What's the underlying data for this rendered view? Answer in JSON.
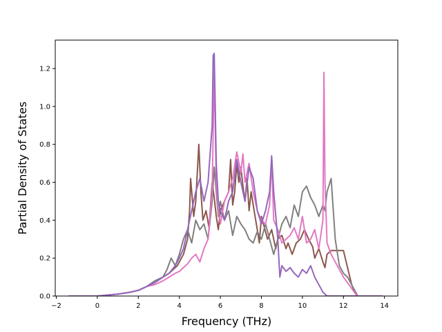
{
  "chart_data": {
    "type": "line",
    "title": "",
    "xlabel": "Frequency (THz)",
    "ylabel": "Partial Density of States",
    "xlim": [
      -2.05,
      14.65
    ],
    "ylim": [
      0,
      1.35
    ],
    "xticks": [
      -2,
      0,
      2,
      4,
      6,
      8,
      10,
      12,
      14
    ],
    "yticks": [
      0.0,
      0.2,
      0.4,
      0.6,
      0.8,
      1.0,
      1.2
    ],
    "xtick_labels": [
      "−2",
      "0",
      "2",
      "4",
      "6",
      "8",
      "10",
      "12",
      "14"
    ],
    "ytick_labels": [
      "0.0",
      "0.2",
      "0.4",
      "0.6",
      "0.8",
      "1.0",
      "1.2"
    ],
    "grid": false,
    "series": [
      {
        "color": "#8c564b",
        "x": [
          -1.4,
          0,
          1,
          1.6,
          2.0,
          2.4,
          2.8,
          3.2,
          3.5,
          3.7,
          3.9,
          4.0,
          4.2,
          4.4,
          4.5,
          4.55,
          4.7,
          4.8,
          4.95,
          5.05,
          5.15,
          5.3,
          5.45,
          5.6,
          5.7,
          5.8,
          5.9,
          6.0,
          6.2,
          6.4,
          6.5,
          6.6,
          6.7,
          6.8,
          6.9,
          7.0,
          7.1,
          7.2,
          7.3,
          7.4,
          7.5,
          7.6,
          7.8,
          7.9,
          8.0,
          8.1,
          8.3,
          8.5,
          8.7,
          8.8,
          9.0,
          9.2,
          9.3,
          9.5,
          9.7,
          9.9,
          10.1,
          10.3,
          10.5,
          10.6,
          10.8,
          11.0,
          11.1,
          11.2,
          11.4,
          11.6,
          11.8,
          12.0,
          12.2,
          12.4,
          12.6,
          12.7,
          13.0,
          13.5,
          13.9
        ],
        "y": [
          0.0,
          0.0,
          0.01,
          0.02,
          0.03,
          0.05,
          0.07,
          0.1,
          0.12,
          0.14,
          0.16,
          0.18,
          0.22,
          0.3,
          0.45,
          0.62,
          0.42,
          0.5,
          0.8,
          0.55,
          0.4,
          0.45,
          0.36,
          0.6,
          0.52,
          0.42,
          0.35,
          0.45,
          0.5,
          0.55,
          0.72,
          0.48,
          0.55,
          0.7,
          0.6,
          0.68,
          0.58,
          0.5,
          0.62,
          0.45,
          0.55,
          0.48,
          0.35,
          0.28,
          0.42,
          0.38,
          0.3,
          0.35,
          0.25,
          0.3,
          0.32,
          0.25,
          0.28,
          0.22,
          0.28,
          0.3,
          0.35,
          0.3,
          0.26,
          0.2,
          0.25,
          0.18,
          0.15,
          0.22,
          0.24,
          0.24,
          0.24,
          0.24,
          0.15,
          0.06,
          0.01,
          0.0,
          0.0,
          0.0,
          0.0
        ]
      },
      {
        "color": "#7f7f7f",
        "x": [
          -1.4,
          0,
          1,
          1.6,
          2.0,
          2.4,
          2.8,
          3.2,
          3.4,
          3.6,
          3.8,
          4.0,
          4.2,
          4.4,
          4.6,
          4.8,
          5.0,
          5.2,
          5.4,
          5.6,
          5.7,
          5.8,
          5.9,
          6.0,
          6.2,
          6.4,
          6.6,
          6.8,
          7.0,
          7.2,
          7.4,
          7.6,
          7.8,
          8.0,
          8.2,
          8.4,
          8.6,
          8.8,
          9.0,
          9.2,
          9.4,
          9.6,
          9.8,
          10.0,
          10.2,
          10.4,
          10.6,
          10.8,
          11.0,
          11.1,
          11.2,
          11.4,
          11.6,
          11.8,
          12.0,
          12.2,
          12.4,
          12.6,
          12.7,
          13.0,
          13.9
        ],
        "y": [
          0.0,
          0.0,
          0.01,
          0.02,
          0.03,
          0.05,
          0.08,
          0.1,
          0.14,
          0.2,
          0.16,
          0.22,
          0.3,
          0.35,
          0.28,
          0.4,
          0.35,
          0.38,
          0.3,
          0.5,
          0.68,
          0.55,
          0.42,
          0.5,
          0.4,
          0.45,
          0.32,
          0.42,
          0.38,
          0.35,
          0.3,
          0.28,
          0.34,
          0.3,
          0.38,
          0.3,
          0.22,
          0.3,
          0.38,
          0.42,
          0.36,
          0.48,
          0.42,
          0.55,
          0.58,
          0.52,
          0.48,
          0.42,
          0.48,
          0.45,
          0.55,
          0.62,
          0.3,
          0.16,
          0.12,
          0.1,
          0.06,
          0.02,
          0.0,
          0.0,
          0.0
        ]
      },
      {
        "color": "#e377c2",
        "x": [
          -1.4,
          0,
          1,
          1.6,
          2.0,
          2.4,
          2.8,
          3.2,
          3.5,
          3.8,
          4.0,
          4.2,
          4.4,
          4.6,
          4.8,
          5.0,
          5.2,
          5.4,
          5.6,
          5.7,
          5.8,
          5.9,
          6.0,
          6.2,
          6.4,
          6.6,
          6.8,
          7.0,
          7.1,
          7.2,
          7.4,
          7.6,
          7.8,
          8.0,
          8.2,
          8.4,
          8.5,
          8.6,
          8.8,
          9.0,
          9.2,
          9.4,
          9.6,
          9.8,
          10.0,
          10.2,
          10.4,
          10.6,
          10.8,
          11.0,
          11.05,
          11.1,
          11.2,
          11.4,
          11.6,
          11.8,
          12.0,
          12.2,
          12.4,
          12.6,
          12.7,
          13.9
        ],
        "y": [
          0.0,
          0.0,
          0.01,
          0.02,
          0.03,
          0.05,
          0.06,
          0.08,
          0.1,
          0.12,
          0.13,
          0.15,
          0.17,
          0.2,
          0.22,
          0.18,
          0.25,
          0.3,
          0.55,
          1.2,
          0.6,
          0.45,
          0.38,
          0.5,
          0.55,
          0.62,
          0.76,
          0.65,
          0.75,
          0.6,
          0.7,
          0.55,
          0.45,
          0.4,
          0.38,
          0.48,
          0.72,
          0.4,
          0.35,
          0.28,
          0.3,
          0.32,
          0.36,
          0.3,
          0.42,
          0.28,
          0.3,
          0.35,
          0.25,
          0.4,
          1.18,
          0.6,
          0.28,
          0.22,
          0.18,
          0.14,
          0.1,
          0.07,
          0.04,
          0.01,
          0.0,
          0.0
        ]
      },
      {
        "color": "#9467bd",
        "x": [
          -1.4,
          0,
          1,
          1.6,
          2.0,
          2.4,
          2.8,
          3.2,
          3.5,
          3.8,
          4.0,
          4.2,
          4.4,
          4.6,
          4.8,
          5.0,
          5.2,
          5.4,
          5.6,
          5.65,
          5.7,
          5.75,
          5.8,
          5.9,
          6.0,
          6.2,
          6.4,
          6.6,
          6.8,
          7.0,
          7.2,
          7.4,
          7.6,
          7.8,
          8.0,
          8.2,
          8.4,
          8.5,
          8.6,
          8.8,
          8.9,
          9.0,
          9.2,
          9.4,
          9.6,
          9.8,
          10.0,
          10.2,
          10.4,
          10.6,
          10.8,
          11.0,
          11.1,
          11.2,
          11.4,
          11.6,
          11.8,
          12.0,
          12.2,
          12.4,
          12.6,
          12.7,
          13.9
        ],
        "y": [
          0.0,
          0.0,
          0.01,
          0.02,
          0.03,
          0.05,
          0.07,
          0.1,
          0.12,
          0.16,
          0.2,
          0.25,
          0.35,
          0.45,
          0.55,
          0.62,
          0.5,
          0.6,
          0.9,
          1.27,
          1.28,
          1.0,
          0.7,
          0.5,
          0.45,
          0.4,
          0.5,
          0.55,
          0.72,
          0.6,
          0.5,
          0.68,
          0.62,
          0.45,
          0.38,
          0.45,
          0.55,
          0.74,
          0.55,
          0.3,
          0.1,
          0.16,
          0.13,
          0.15,
          0.12,
          0.1,
          0.14,
          0.12,
          0.16,
          0.1,
          0.06,
          0.02,
          0.01,
          0.0,
          0.0,
          0.0,
          0.0,
          0.0,
          0.0,
          0.0,
          0.0,
          0.0,
          0.0
        ]
      }
    ]
  }
}
